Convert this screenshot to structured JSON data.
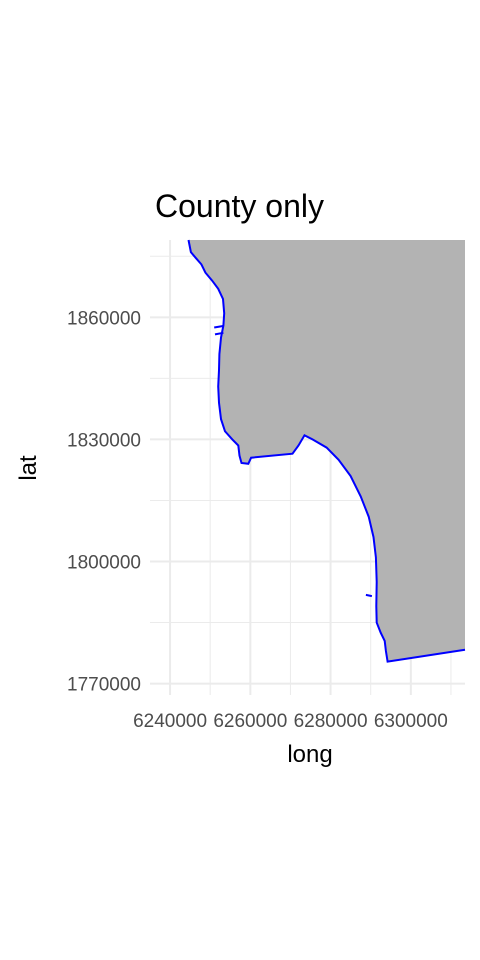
{
  "chart_data": {
    "type": "map",
    "title": "County only",
    "xlabel": "long",
    "ylabel": "lat",
    "x_ticks": [
      6240000,
      6260000,
      6280000,
      6300000
    ],
    "x_tick_labels": [
      "6240000",
      "6260000",
      "6280000",
      "6300000"
    ],
    "y_ticks": [
      1770000,
      1800000,
      1830000,
      1860000
    ],
    "y_tick_labels": [
      "1770000",
      "1800000",
      "1830000",
      "1860000"
    ],
    "xlim": [
      6235000,
      6313500
    ],
    "ylim": [
      1767200,
      1879000
    ],
    "grid": true,
    "colors": {
      "fill": "#b3b3b3",
      "outline": "#0000ff",
      "grid": "#ebebeb",
      "background": "#ffffff"
    },
    "series": [
      {
        "coastline": [
          [
            6244600,
            1879000
          ],
          [
            6245200,
            1876000
          ],
          [
            6246500,
            1874500
          ],
          [
            6247800,
            1873000
          ],
          [
            6248800,
            1871000
          ],
          [
            6250500,
            1869000
          ],
          [
            6252000,
            1867000
          ],
          [
            6253200,
            1864500
          ],
          [
            6253500,
            1861000
          ],
          [
            6253300,
            1858000
          ],
          [
            6252700,
            1855000
          ],
          [
            6252300,
            1851000
          ],
          [
            6252200,
            1847000
          ],
          [
            6252000,
            1843000
          ],
          [
            6252200,
            1839000
          ],
          [
            6252700,
            1835000
          ],
          [
            6253700,
            1832000
          ],
          [
            6255500,
            1830000
          ],
          [
            6257000,
            1828500
          ],
          [
            6257300,
            1826000
          ],
          [
            6257800,
            1824200
          ],
          [
            6259500,
            1824000
          ],
          [
            6260200,
            1825500
          ],
          [
            6270500,
            1826500
          ],
          [
            6272000,
            1828500
          ],
          [
            6273500,
            1831000
          ],
          [
            6275500,
            1830000
          ],
          [
            6279000,
            1828000
          ],
          [
            6282000,
            1825000
          ],
          [
            6285000,
            1821000
          ],
          [
            6287500,
            1816000
          ],
          [
            6289500,
            1811000
          ],
          [
            6290700,
            1806000
          ],
          [
            6291300,
            1801000
          ],
          [
            6291500,
            1795000
          ],
          [
            6291400,
            1789000
          ],
          [
            6291500,
            1785000
          ],
          [
            6292500,
            1782500
          ],
          [
            6293500,
            1780500
          ],
          [
            6293800,
            1778000
          ],
          [
            6294200,
            1775400
          ],
          [
            6313500,
            1778300
          ]
        ],
        "closure": [
          [
            6313500,
            1879000
          ]
        ],
        "islands": [
          [
            [
              6288800,
              1791800
            ],
            [
              6290300,
              1791500
            ]
          ],
          [
            [
              6251000,
              1857500
            ],
            [
              6253400,
              1857900
            ]
          ],
          [
            [
              6251200,
              1855800
            ],
            [
              6253300,
              1856200
            ]
          ]
        ]
      }
    ]
  }
}
